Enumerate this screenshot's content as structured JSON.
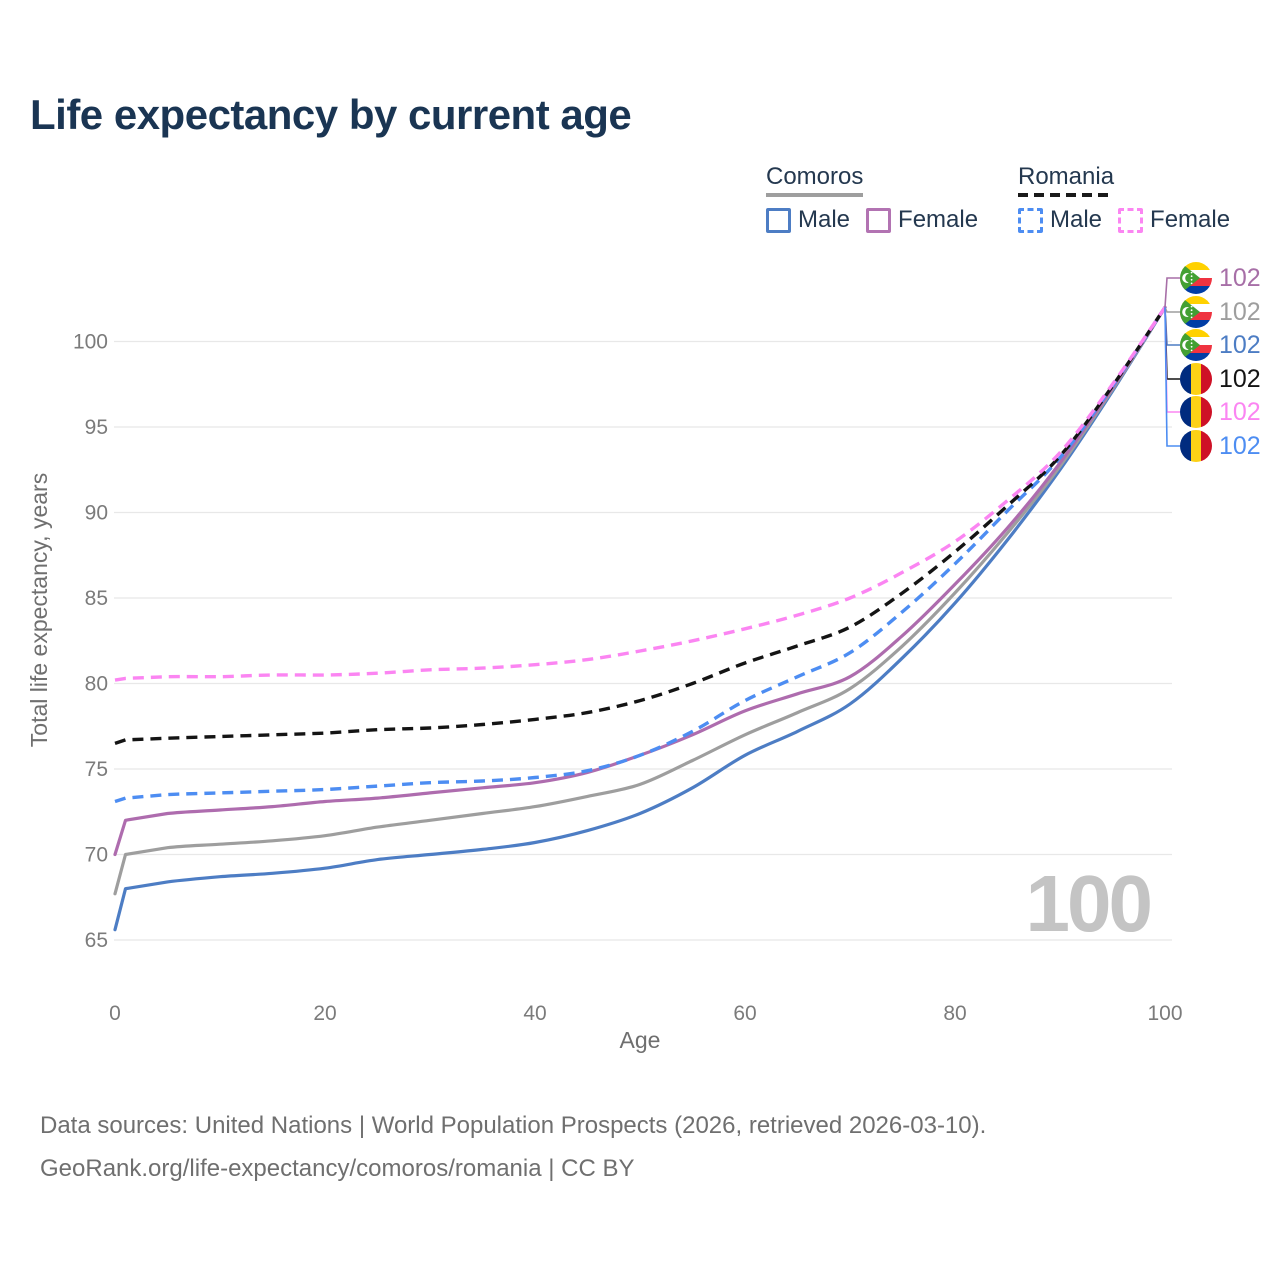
{
  "title": "Life expectancy by current age",
  "watermark_age": "100",
  "legend": {
    "groups": [
      {
        "name": "Comoros",
        "dash": false,
        "underline_color": "#9e9e9e",
        "items": [
          {
            "label": "Male",
            "color": "#4d7dc4"
          },
          {
            "label": "Female",
            "color": "#b273b2"
          }
        ]
      },
      {
        "name": "Romania",
        "dash": true,
        "underline_color": "#1a1a1a",
        "items": [
          {
            "label": "Male",
            "color": "#4d8df2"
          },
          {
            "label": "Female",
            "color": "#fb85f2"
          }
        ]
      }
    ]
  },
  "end_labels": [
    {
      "series": "Comoros Female",
      "flag": "comoros",
      "value": "102",
      "color": "#a76fa7"
    },
    {
      "series": "Comoros Both sexes",
      "flag": "comoros",
      "value": "102",
      "color": "#9e9e9e"
    },
    {
      "series": "Comoros Male",
      "flag": "comoros",
      "value": "102",
      "color": "#4d7dc4"
    },
    {
      "series": "Romania Both sexes",
      "flag": "romania",
      "value": "102",
      "color": "#141414"
    },
    {
      "series": "Romania Female",
      "flag": "romania",
      "value": "102",
      "color": "#fb85f2"
    },
    {
      "series": "Romania Male",
      "flag": "romania",
      "value": "102",
      "color": "#4d8df2"
    }
  ],
  "footer": {
    "line1": "Data sources: United Nations | World Population Prospects (2026, retrieved 2026-03-10).",
    "line2": "GeoRank.org/life-expectancy/comoros/romania | CC BY"
  },
  "chart_data": {
    "type": "line",
    "title": "Life expectancy by current age",
    "xlabel": "Age",
    "ylabel": "Total life expectancy, years",
    "xlim": [
      0,
      100
    ],
    "ylim": [
      65,
      102
    ],
    "x_ticks": [
      0,
      20,
      40,
      60,
      80,
      100
    ],
    "y_ticks": [
      65,
      70,
      75,
      80,
      85,
      90,
      95,
      100
    ],
    "grid": "horizontal",
    "legend_position": "top-right",
    "ages": [
      0,
      1,
      5,
      10,
      15,
      20,
      25,
      30,
      35,
      40,
      45,
      50,
      55,
      60,
      65,
      70,
      75,
      80,
      85,
      90,
      95,
      100
    ],
    "series": [
      {
        "id": "comoros-male",
        "country": "Comoros",
        "sex": "Male",
        "color": "#4d7dc4",
        "dash": false,
        "values": [
          65.6,
          68.0,
          68.4,
          68.7,
          68.9,
          69.2,
          69.7,
          70.0,
          70.3,
          70.7,
          71.4,
          72.4,
          73.9,
          75.8,
          77.2,
          78.8,
          81.5,
          84.7,
          88.4,
          92.5,
          97.1,
          102
        ]
      },
      {
        "id": "comoros-both",
        "country": "Comoros",
        "sex": "Both sexes",
        "color": "#9e9e9e",
        "dash": false,
        "values": [
          67.7,
          70.0,
          70.4,
          70.6,
          70.8,
          71.1,
          71.6,
          72.0,
          72.4,
          72.8,
          73.4,
          74.1,
          75.5,
          77.0,
          78.3,
          79.7,
          82.2,
          85.3,
          88.8,
          92.7,
          97.2,
          102
        ]
      },
      {
        "id": "comoros-female",
        "country": "Comoros",
        "sex": "Female",
        "color": "#ae6cae",
        "dash": false,
        "values": [
          70.0,
          72.0,
          72.4,
          72.6,
          72.8,
          73.1,
          73.3,
          73.6,
          73.9,
          74.2,
          74.8,
          75.8,
          77.0,
          78.4,
          79.4,
          80.4,
          82.8,
          85.8,
          89.1,
          92.9,
          97.3,
          102
        ]
      },
      {
        "id": "romania-male",
        "country": "Romania",
        "sex": "Male",
        "color": "#4d8df2",
        "dash": true,
        "values": [
          73.1,
          73.3,
          73.5,
          73.6,
          73.7,
          73.8,
          74.0,
          74.2,
          74.3,
          74.5,
          74.9,
          75.8,
          77.2,
          79.0,
          80.4,
          81.8,
          84.2,
          87.0,
          90.1,
          93.2,
          97.4,
          102
        ]
      },
      {
        "id": "romania-both",
        "country": "Romania",
        "sex": "Both sexes",
        "color": "#141414",
        "dash": true,
        "values": [
          76.5,
          76.7,
          76.8,
          76.9,
          77.0,
          77.1,
          77.3,
          77.4,
          77.6,
          77.9,
          78.3,
          79.0,
          80.0,
          81.2,
          82.2,
          83.3,
          85.3,
          87.7,
          90.4,
          93.3,
          97.4,
          102
        ]
      },
      {
        "id": "romania-female",
        "country": "Romania",
        "sex": "Female",
        "color": "#fb85f2",
        "dash": true,
        "values": [
          80.2,
          80.3,
          80.4,
          80.4,
          80.5,
          80.5,
          80.6,
          80.8,
          80.9,
          81.1,
          81.4,
          81.9,
          82.5,
          83.2,
          84.0,
          85.0,
          86.5,
          88.3,
          90.7,
          93.5,
          97.5,
          102
        ]
      }
    ],
    "end_value_label": 102
  }
}
